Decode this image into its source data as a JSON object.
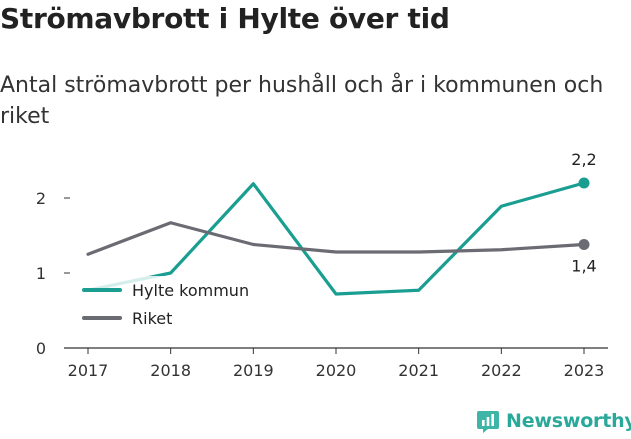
{
  "title": "Strömavbrott i Hylte över tid",
  "subtitle": "Antal strömavbrott per hushåll och år i kommunen och riket",
  "brand": "Newsworthy",
  "chart_data": {
    "type": "line",
    "title": "Strömavbrott i Hylte över tid",
    "subtitle": "Antal strömavbrott per hushåll och år i kommunen och riket",
    "categories": [
      "2017",
      "2018",
      "2019",
      "2020",
      "2021",
      "2022",
      "2023"
    ],
    "ylim": [
      0,
      2
    ],
    "yticks": [
      "0",
      "1",
      "2"
    ],
    "grid": false,
    "legend_position": "left",
    "series": [
      {
        "name": "Hylte kommun",
        "color": "#1a9e91",
        "values": [
          0.77,
          1.0,
          2.19,
          0.72,
          0.77,
          1.89,
          2.2
        ],
        "end_label": "2,2"
      },
      {
        "name": "Riket",
        "color": "#6b6b73",
        "values": [
          1.25,
          1.67,
          1.38,
          1.28,
          1.28,
          1.31,
          1.38
        ],
        "end_label": "1,4"
      }
    ]
  }
}
